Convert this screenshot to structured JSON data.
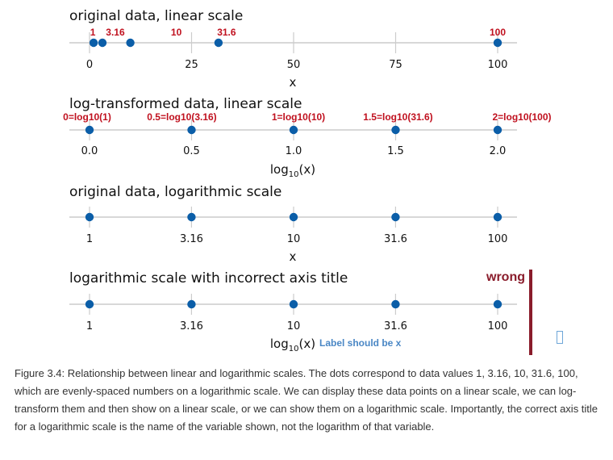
{
  "chart_data": [
    {
      "type": "scatter",
      "title": "original data, linear scale",
      "xlabel": "x",
      "xlim": [
        0,
        100
      ],
      "scale": "linear",
      "ticks": [
        0,
        25,
        50,
        75,
        100
      ],
      "tick_labels": [
        "0",
        "25",
        "50",
        "75",
        "100"
      ],
      "x": [
        1,
        3.16,
        10,
        31.6,
        100
      ],
      "point_labels": [
        "1",
        "3.16",
        "10",
        "31.6",
        "100"
      ]
    },
    {
      "type": "scatter",
      "title": "log-transformed data, linear scale",
      "xlabel": "log10(x)",
      "xlim": [
        0,
        2
      ],
      "scale": "linear",
      "ticks": [
        0,
        0.5,
        1,
        1.5,
        2
      ],
      "tick_labels": [
        "0.0",
        "0.5",
        "1.0",
        "1.5",
        "2.0"
      ],
      "x": [
        0,
        0.5,
        1,
        1.5,
        2
      ],
      "point_labels": [
        "0=log10(1)",
        "0.5=log10(3.16)",
        "1=log10(10)",
        "1.5=log10(31.6)",
        "2=log10(100)"
      ]
    },
    {
      "type": "scatter",
      "title": "original data, logarithmic scale",
      "xlabel": "x",
      "xlim": [
        1,
        100
      ],
      "scale": "log",
      "ticks": [
        1,
        3.16,
        10,
        31.6,
        100
      ],
      "tick_labels": [
        "1",
        "3.16",
        "10",
        "31.6",
        "100"
      ],
      "x": [
        1,
        3.16,
        10,
        31.6,
        100
      ]
    },
    {
      "type": "scatter",
      "title": "logarithmic scale with incorrect axis title",
      "xlabel": "log10(x)",
      "xlim": [
        1,
        100
      ],
      "scale": "log",
      "ticks": [
        1,
        3.16,
        10,
        31.6,
        100
      ],
      "tick_labels": [
        "1",
        "3.16",
        "10",
        "31.6",
        "100"
      ],
      "x": [
        1,
        3.16,
        10,
        31.6,
        100
      ],
      "note": "Label should be x",
      "flag": "wrong"
    }
  ],
  "colors": {
    "point": "#0b5ea8",
    "annotation": "#c0111f",
    "note": "#4a87c5",
    "wrong": "#8a1c2b",
    "axis": "#cccccc"
  },
  "caption": "Figure 3.4: Relationship between linear and logarithmic scales. The dots correspond to data values 1, 3.16, 10, 31.6, 100, which are evenly-spaced numbers on a logarithmic scale. We can display these data points on a linear scale, we can log-transform them and then show on a linear scale, or we can show them on a logarithmic scale. Importantly, the correct axis title for a logarithmic scale is the name of the variable shown, not the logarithm of that variable."
}
